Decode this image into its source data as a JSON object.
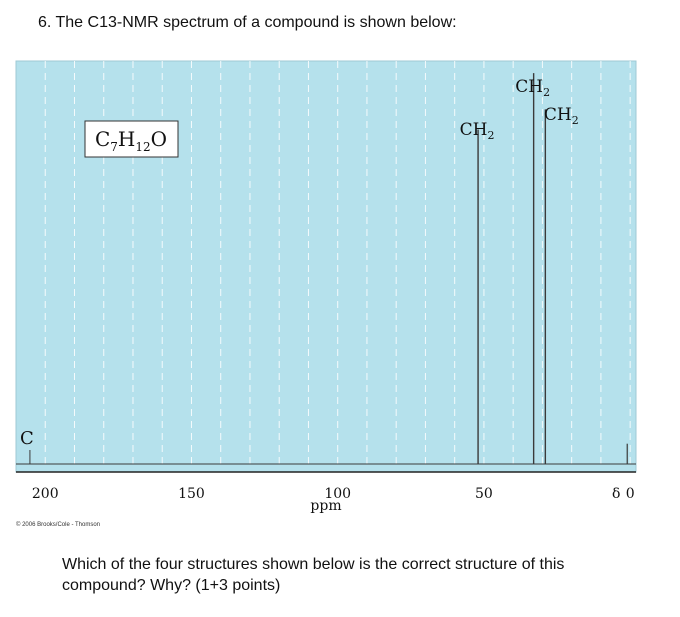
{
  "question": "6.  The C13-NMR spectrum of a compound is shown below:",
  "followup": "Which of the four structures shown below is the correct structure of this compound? Why? (1+3 points)",
  "copyright": "© 2006 Brooks/Cole - Thomson",
  "colors": {
    "plot_background": "#b5e1ec",
    "grid_line": "#ffffff",
    "trace": "#3a3a3a",
    "formula_box_fill": "#ffffff"
  },
  "chart_data": {
    "type": "line",
    "title": "",
    "xlabel": "ppm",
    "ylabel": "",
    "xlim": [
      210,
      -2
    ],
    "x_reversed": true,
    "grid": true,
    "xticks": [
      {
        "value": 200,
        "label": "200"
      },
      {
        "value": 150,
        "label": "150"
      },
      {
        "value": 100,
        "label": "100"
      },
      {
        "value": 50,
        "label": "50"
      },
      {
        "value": 0,
        "label": "0"
      }
    ],
    "delta_label": "δ",
    "formula": {
      "C": "C",
      "sub1": "7",
      "H": "H",
      "sub2": "12",
      "O": "O"
    },
    "reference_peak": {
      "x": 1,
      "height": 0.1
    },
    "corner_label": {
      "text": "C",
      "x": 209
    },
    "peaks": [
      {
        "x": 52,
        "height": 0.83,
        "label": "CH",
        "label_sub": "2"
      },
      {
        "x": 33,
        "height": 0.97,
        "label": "CH",
        "label_sub": "2"
      },
      {
        "x": 29,
        "height": 0.88,
        "label": "CH",
        "label_sub": "2"
      }
    ]
  }
}
